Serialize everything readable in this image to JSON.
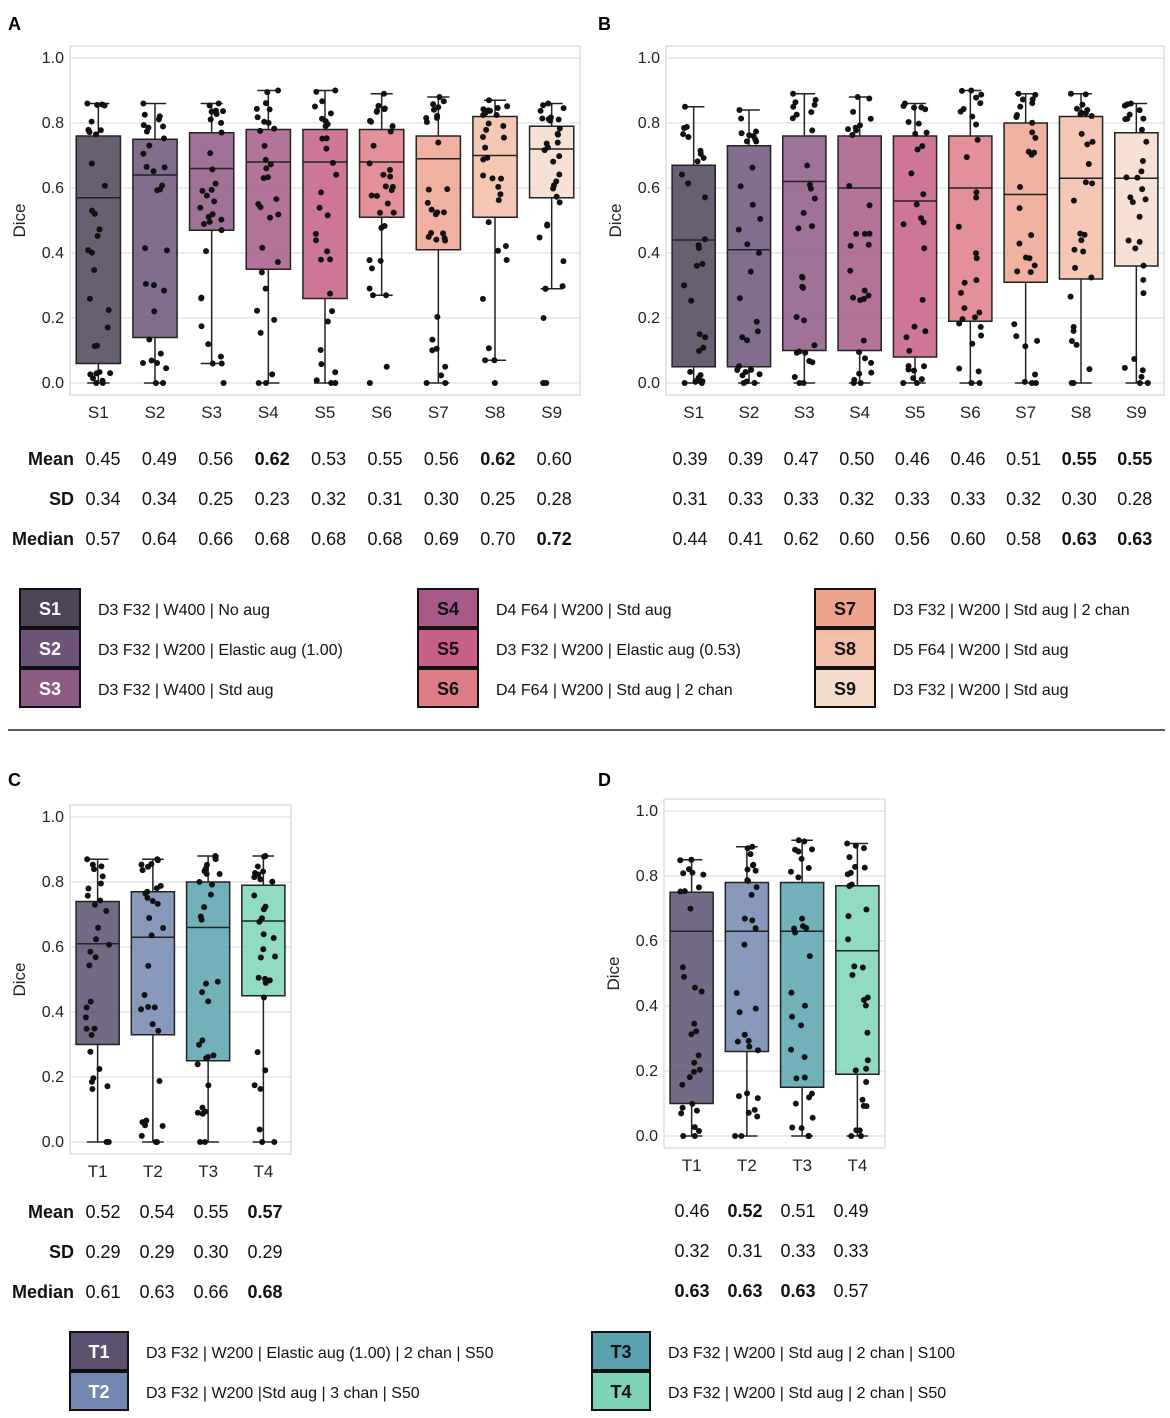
{
  "chart_data": [
    {
      "panel": "A",
      "type": "box",
      "ylabel": "Dice",
      "ylim": [
        0.0,
        1.0
      ],
      "yticks": [
        "0.0",
        "0.2",
        "0.4",
        "0.6",
        "0.8",
        "1.0"
      ],
      "grid": true,
      "categories": [
        "S1",
        "S2",
        "S3",
        "S4",
        "S5",
        "S6",
        "S7",
        "S8",
        "S9"
      ],
      "colors": [
        "#4e4459",
        "#6d5478",
        "#8e5a86",
        "#a75a8a",
        "#c75f86",
        "#df7d86",
        "#eea38f",
        "#f2bea7",
        "#f6dccd"
      ],
      "boxes": [
        {
          "q1": 0.06,
          "median": 0.57,
          "q3": 0.76,
          "whisker_low": 0.0,
          "whisker_high": 0.86
        },
        {
          "q1": 0.14,
          "median": 0.64,
          "q3": 0.75,
          "whisker_low": 0.0,
          "whisker_high": 0.86
        },
        {
          "q1": 0.47,
          "median": 0.66,
          "q3": 0.77,
          "whisker_low": 0.06,
          "whisker_high": 0.86
        },
        {
          "q1": 0.35,
          "median": 0.68,
          "q3": 0.78,
          "whisker_low": 0.0,
          "whisker_high": 0.9
        },
        {
          "q1": 0.26,
          "median": 0.68,
          "q3": 0.78,
          "whisker_low": 0.0,
          "whisker_high": 0.9
        },
        {
          "q1": 0.51,
          "median": 0.68,
          "q3": 0.78,
          "whisker_low": 0.27,
          "whisker_high": 0.89
        },
        {
          "q1": 0.41,
          "median": 0.69,
          "q3": 0.76,
          "whisker_low": 0.0,
          "whisker_high": 0.88
        },
        {
          "q1": 0.51,
          "median": 0.7,
          "q3": 0.82,
          "whisker_low": 0.07,
          "whisker_high": 0.87
        },
        {
          "q1": 0.57,
          "median": 0.72,
          "q3": 0.79,
          "whisker_low": 0.29,
          "whisker_high": 0.86
        }
      ],
      "outliers": [
        [],
        [],
        [
          0.0
        ],
        [],
        [],
        [
          0.05,
          0.0
        ],
        [],
        [
          0.0
        ],
        [
          0.2,
          0.0,
          0.0,
          0.0
        ]
      ],
      "stats": {
        "names": [
          "Mean",
          "SD",
          "Median"
        ],
        "mean": [
          "0.45",
          "0.49",
          "0.56",
          "0.62",
          "0.53",
          "0.55",
          "0.56",
          "0.62",
          "0.60"
        ],
        "sd": [
          "0.34",
          "0.34",
          "0.25",
          "0.23",
          "0.32",
          "0.31",
          "0.30",
          "0.25",
          "0.28"
        ],
        "median": [
          "0.57",
          "0.64",
          "0.66",
          "0.68",
          "0.68",
          "0.68",
          "0.69",
          "0.70",
          "0.72"
        ],
        "bold_mean": [
          3,
          7
        ],
        "bold_sd": [],
        "bold_median": [
          8
        ]
      }
    },
    {
      "panel": "B",
      "type": "box",
      "ylabel": "Dice",
      "ylim": [
        0.0,
        1.0
      ],
      "yticks": [
        "0.0",
        "0.2",
        "0.4",
        "0.6",
        "0.8",
        "1.0"
      ],
      "grid": true,
      "categories": [
        "S1",
        "S2",
        "S3",
        "S4",
        "S5",
        "S6",
        "S7",
        "S8",
        "S9"
      ],
      "colors": [
        "#4e4459",
        "#6d5478",
        "#8e5a86",
        "#a75a8a",
        "#c75f86",
        "#df7d86",
        "#eea38f",
        "#f2bea7",
        "#f6dccd"
      ],
      "boxes": [
        {
          "q1": 0.05,
          "median": 0.44,
          "q3": 0.67,
          "whisker_low": 0.0,
          "whisker_high": 0.85
        },
        {
          "q1": 0.05,
          "median": 0.41,
          "q3": 0.73,
          "whisker_low": 0.0,
          "whisker_high": 0.84
        },
        {
          "q1": 0.1,
          "median": 0.62,
          "q3": 0.76,
          "whisker_low": 0.0,
          "whisker_high": 0.89
        },
        {
          "q1": 0.1,
          "median": 0.6,
          "q3": 0.76,
          "whisker_low": 0.0,
          "whisker_high": 0.88
        },
        {
          "q1": 0.08,
          "median": 0.56,
          "q3": 0.76,
          "whisker_low": 0.0,
          "whisker_high": 0.86
        },
        {
          "q1": 0.19,
          "median": 0.6,
          "q3": 0.76,
          "whisker_low": 0.0,
          "whisker_high": 0.9
        },
        {
          "q1": 0.31,
          "median": 0.58,
          "q3": 0.8,
          "whisker_low": 0.0,
          "whisker_high": 0.89
        },
        {
          "q1": 0.32,
          "median": 0.63,
          "q3": 0.82,
          "whisker_low": 0.0,
          "whisker_high": 0.89
        },
        {
          "q1": 0.36,
          "median": 0.63,
          "q3": 0.77,
          "whisker_low": 0.0,
          "whisker_high": 0.86
        }
      ],
      "outliers": [
        [],
        [],
        [],
        [],
        [],
        [],
        [],
        [],
        []
      ],
      "stats": {
        "names": [
          "",
          "",
          ""
        ],
        "mean": [
          "0.39",
          "0.39",
          "0.47",
          "0.50",
          "0.46",
          "0.46",
          "0.51",
          "0.55",
          "0.55"
        ],
        "sd": [
          "0.31",
          "0.33",
          "0.33",
          "0.32",
          "0.33",
          "0.33",
          "0.32",
          "0.30",
          "0.28"
        ],
        "median": [
          "0.44",
          "0.41",
          "0.62",
          "0.60",
          "0.56",
          "0.60",
          "0.58",
          "0.63",
          "0.63"
        ],
        "bold_mean": [
          7,
          8
        ],
        "bold_sd": [],
        "bold_median": [
          7,
          8
        ]
      }
    },
    {
      "panel": "C",
      "type": "box",
      "ylabel": "Dice",
      "ylim": [
        0.0,
        1.0
      ],
      "yticks": [
        "0.0",
        "0.2",
        "0.4",
        "0.6",
        "0.8",
        "1.0"
      ],
      "grid": true,
      "categories": [
        "T1",
        "T2",
        "T3",
        "T4"
      ],
      "colors": [
        "#5b5070",
        "#7388b0",
        "#5aa3ae",
        "#7ed4b8"
      ],
      "boxes": [
        {
          "q1": 0.3,
          "median": 0.61,
          "q3": 0.74,
          "whisker_low": 0.0,
          "whisker_high": 0.87
        },
        {
          "q1": 0.33,
          "median": 0.63,
          "q3": 0.77,
          "whisker_low": 0.0,
          "whisker_high": 0.87
        },
        {
          "q1": 0.25,
          "median": 0.66,
          "q3": 0.8,
          "whisker_low": 0.0,
          "whisker_high": 0.88
        },
        {
          "q1": 0.45,
          "median": 0.68,
          "q3": 0.79,
          "whisker_low": 0.0,
          "whisker_high": 0.88
        }
      ],
      "outliers": [
        [],
        [],
        [],
        []
      ],
      "stats": {
        "names": [
          "Mean",
          "SD",
          "Median"
        ],
        "mean": [
          "0.52",
          "0.54",
          "0.55",
          "0.57"
        ],
        "sd": [
          "0.29",
          "0.29",
          "0.30",
          "0.29"
        ],
        "median": [
          "0.61",
          "0.63",
          "0.66",
          "0.68"
        ],
        "bold_mean": [
          3
        ],
        "bold_sd": [],
        "bold_median": [
          3
        ]
      }
    },
    {
      "panel": "D",
      "type": "box",
      "ylabel": "Dice",
      "ylim": [
        0.0,
        1.0
      ],
      "yticks": [
        "0.0",
        "0.2",
        "0.4",
        "0.6",
        "0.8",
        "1.0"
      ],
      "grid": true,
      "categories": [
        "T1",
        "T2",
        "T3",
        "T4"
      ],
      "colors": [
        "#5b5070",
        "#7388b0",
        "#5aa3ae",
        "#7ed4b8"
      ],
      "boxes": [
        {
          "q1": 0.1,
          "median": 0.63,
          "q3": 0.75,
          "whisker_low": 0.0,
          "whisker_high": 0.85
        },
        {
          "q1": 0.26,
          "median": 0.63,
          "q3": 0.78,
          "whisker_low": 0.0,
          "whisker_high": 0.89
        },
        {
          "q1": 0.15,
          "median": 0.63,
          "q3": 0.78,
          "whisker_low": 0.0,
          "whisker_high": 0.91
        },
        {
          "q1": 0.19,
          "median": 0.57,
          "q3": 0.77,
          "whisker_low": 0.0,
          "whisker_high": 0.9
        }
      ],
      "outliers": [
        [],
        [],
        [],
        []
      ],
      "stats": {
        "names": [
          "",
          "",
          ""
        ],
        "mean": [
          "0.46",
          "0.52",
          "0.51",
          "0.49"
        ],
        "sd": [
          "0.32",
          "0.31",
          "0.33",
          "0.33"
        ],
        "median": [
          "0.63",
          "0.63",
          "0.63",
          "0.57"
        ],
        "bold_mean": [
          1
        ],
        "bold_sd": [],
        "bold_median": [
          0,
          1,
          2
        ]
      }
    }
  ],
  "legend_top": {
    "columns": [
      [
        {
          "code": "S1",
          "color": "#4e4459",
          "text_color": "#ffffff",
          "desc": "D3 F32 | W400 | No aug"
        },
        {
          "code": "S2",
          "color": "#6d5478",
          "text_color": "#ffffff",
          "desc": "D3 F32 | W200 | Elastic aug (1.00)"
        },
        {
          "code": "S3",
          "color": "#8e5a86",
          "text_color": "#ffffff",
          "desc": "D3 F32 | W400 | Std aug"
        }
      ],
      [
        {
          "code": "S4",
          "color": "#a75a8a",
          "text_color": "#111111",
          "desc": "D4 F64 | W200 | Std aug"
        },
        {
          "code": "S5",
          "color": "#c75f86",
          "text_color": "#111111",
          "desc": "D3 F32 | W200 | Elastic aug (0.53)"
        },
        {
          "code": "S6",
          "color": "#df7d86",
          "text_color": "#111111",
          "desc": "D4 F64 | W200 | Std aug | 2 chan"
        }
      ],
      [
        {
          "code": "S7",
          "color": "#eea38f",
          "text_color": "#111111",
          "desc": "D3 F32 | W200 | Std aug | 2 chan"
        },
        {
          "code": "S8",
          "color": "#f2bea7",
          "text_color": "#111111",
          "desc": "D5 F64 | W200 | Std aug"
        },
        {
          "code": "S9",
          "color": "#f6dccd",
          "text_color": "#111111",
          "desc": "D3 F32 | W200 | Std aug"
        }
      ]
    ]
  },
  "legend_bottom": {
    "columns": [
      [
        {
          "code": "T1",
          "color": "#5b5070",
          "text_color": "#ffffff",
          "desc": "D3 F32 | W200 | Elastic aug (1.00) | 2 chan | S50"
        },
        {
          "code": "T2",
          "color": "#7388b0",
          "text_color": "#ffffff",
          "desc": "D3 F32 | W200 |Std aug | 3 chan | S50"
        }
      ],
      [
        {
          "code": "T3",
          "color": "#5aa3ae",
          "text_color": "#111111",
          "desc": "D3 F32 | W200 | Std aug | 2 chan | S100"
        },
        {
          "code": "T4",
          "color": "#7ed4b8",
          "text_color": "#111111",
          "desc": "D3 F32 | W200 | Std aug | 2 chan | S50"
        }
      ]
    ]
  }
}
